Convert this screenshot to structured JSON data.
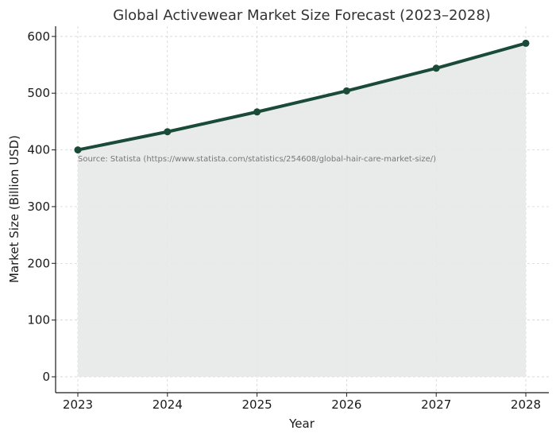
{
  "chart_data": {
    "type": "area",
    "title": "Global Activewear Market Size Forecast (2023–2028)",
    "xlabel": "Year",
    "ylabel": "Market Size (Billion USD)",
    "categories": [
      "2023",
      "2024",
      "2025",
      "2026",
      "2027",
      "2028"
    ],
    "series": [
      {
        "values": [
          400,
          432,
          467,
          504,
          544,
          588
        ]
      }
    ],
    "ylim": [
      -28,
      618
    ],
    "yticks": [
      0,
      100,
      200,
      300,
      400,
      500,
      600
    ],
    "grid": true,
    "annotation": "Source: Statista (https://www.statista.com/statistics/254608/global-hair-care-market-size/)",
    "colors": {
      "line": "#1a4a38",
      "fill": "#e5e9e7",
      "marker": "#1a4a38"
    }
  }
}
